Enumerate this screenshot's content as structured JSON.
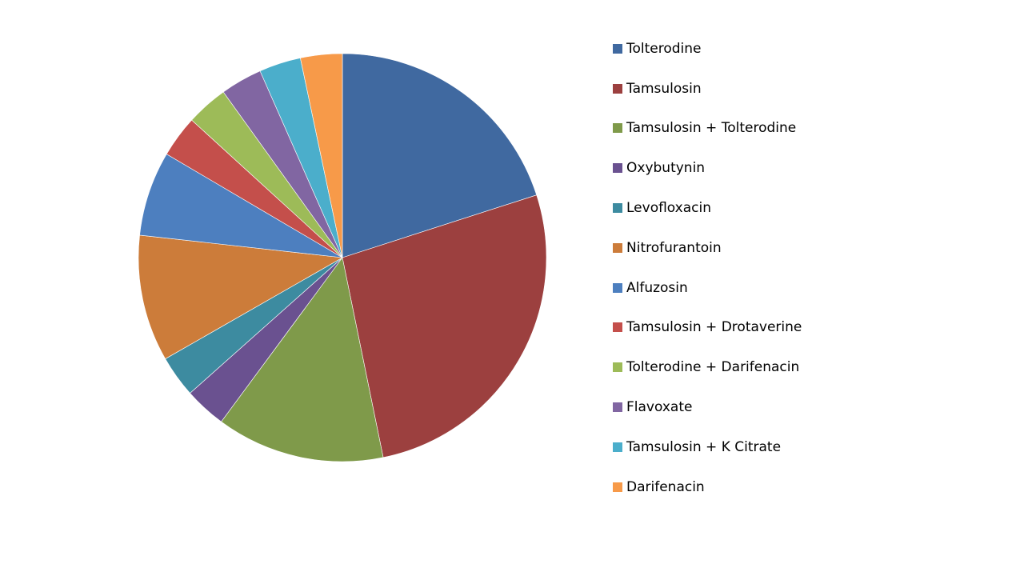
{
  "chart_data": {
    "type": "pie",
    "title": "",
    "legend_position": "right",
    "slices": [
      {
        "label": "Tolterodine",
        "value": 20,
        "color": "#4069a0"
      },
      {
        "label": "Tamsulosin",
        "value": 26.7,
        "color": "#9c403f"
      },
      {
        "label": "Tamsulosin + Tolterodine",
        "value": 13.3,
        "color": "#7f9a4a"
      },
      {
        "label": "Oxybutynin",
        "value": 3.3,
        "color": "#6a5190"
      },
      {
        "label": "Levofloxacin",
        "value": 3.3,
        "color": "#3d8ba0"
      },
      {
        "label": "Nitrofurantoin",
        "value": 10,
        "color": "#cc7c3a"
      },
      {
        "label": "Alfuzosin",
        "value": 6.7,
        "color": "#4d7fbf"
      },
      {
        "label": "Tamsulosin + Drotaverine",
        "value": 3.3,
        "color": "#c44f4b"
      },
      {
        "label": "Tolterodine + Darifenacin",
        "value": 3.3,
        "color": "#9dbb58"
      },
      {
        "label": "Flavoxate",
        "value": 3.3,
        "color": "#8166a2"
      },
      {
        "label": "Tamsulosin + K Citrate",
        "value": 3.3,
        "color": "#4baecb"
      },
      {
        "label": "Darifenacin",
        "value": 3.3,
        "color": "#f79a49"
      }
    ]
  }
}
